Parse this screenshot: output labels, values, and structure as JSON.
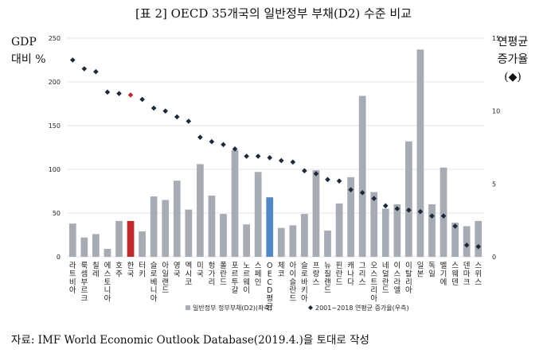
{
  "title": "[표 2] OECD 35개국의 일반정부 부채(D2) 수준 비교",
  "ylabel_left": [
    "GDP",
    "대비 %"
  ],
  "ylabel_right": [
    "연평균",
    "증가율",
    "(◆)"
  ],
  "source": "자료: IMF World Economic Outlook Database(2019.4.)을 토대로 작성",
  "colors": {
    "bar": "#a6abb4",
    "bar_korea": "#c0282d",
    "bar_oecd": "#4f87c7",
    "marker": "#1b2a3a",
    "marker_korea": "#c0282d",
    "grid": "#e4e4e4"
  },
  "chart_data": {
    "type": "bar",
    "categories": [
      "라트비아",
      "룩셈부르크",
      "칠레",
      "에스토니아",
      "호주",
      "한국",
      "터키",
      "슬로베니아",
      "아일랜드",
      "영국",
      "멕시코",
      "미국",
      "헝가리",
      "폴란드",
      "포르투갈",
      "노르웨이",
      "스페인",
      "OECD평균",
      "체코",
      "아이슬란드",
      "슬로바키아",
      "프랑스",
      "뉴질랜드",
      "핀란드",
      "캐나다",
      "그리스",
      "오스트리아",
      "네덜란드",
      "이스라엘",
      "이탈리아",
      "일본",
      "독일",
      "벨기에",
      "스웨덴",
      "덴마크",
      "스위스"
    ],
    "series": [
      {
        "name": "일반정부 정부부채(D2)(좌축)",
        "axis": "left",
        "type": "bar",
        "values": [
          38,
          22,
          26,
          9,
          41,
          41,
          29,
          69,
          65,
          87,
          54,
          106,
          70,
          49,
          122,
          37,
          97,
          68,
          33,
          36,
          49,
          99,
          30,
          61,
          91,
          184,
          74,
          55,
          60,
          132,
          237,
          60,
          102,
          39,
          35,
          41
        ]
      },
      {
        "name": "2001~2018 연평균 증가율(우측)",
        "axis": "right",
        "type": "scatter",
        "marker": "diamond",
        "values": [
          13.5,
          12.9,
          12.7,
          11.3,
          11.2,
          11.1,
          10.8,
          10.2,
          10.0,
          9.6,
          9.3,
          8.2,
          7.9,
          7.7,
          7.4,
          6.9,
          6.9,
          6.8,
          6.6,
          6.5,
          5.9,
          5.7,
          5.3,
          5.2,
          4.6,
          4.4,
          4.0,
          3.5,
          3.3,
          3.2,
          3.1,
          2.8,
          2.8,
          2.1,
          0.8,
          0.7
        ]
      }
    ],
    "y_left": {
      "lim": [
        0,
        250
      ],
      "ticks": [
        0,
        50,
        100,
        150,
        200,
        250
      ]
    },
    "y_right": {
      "lim": [
        0,
        15
      ],
      "ticks": [
        0,
        5,
        10,
        15
      ]
    },
    "highlight": {
      "korea_index": 5,
      "oecd_index": 17
    },
    "grid": true,
    "legend_position": "bottom-center"
  }
}
